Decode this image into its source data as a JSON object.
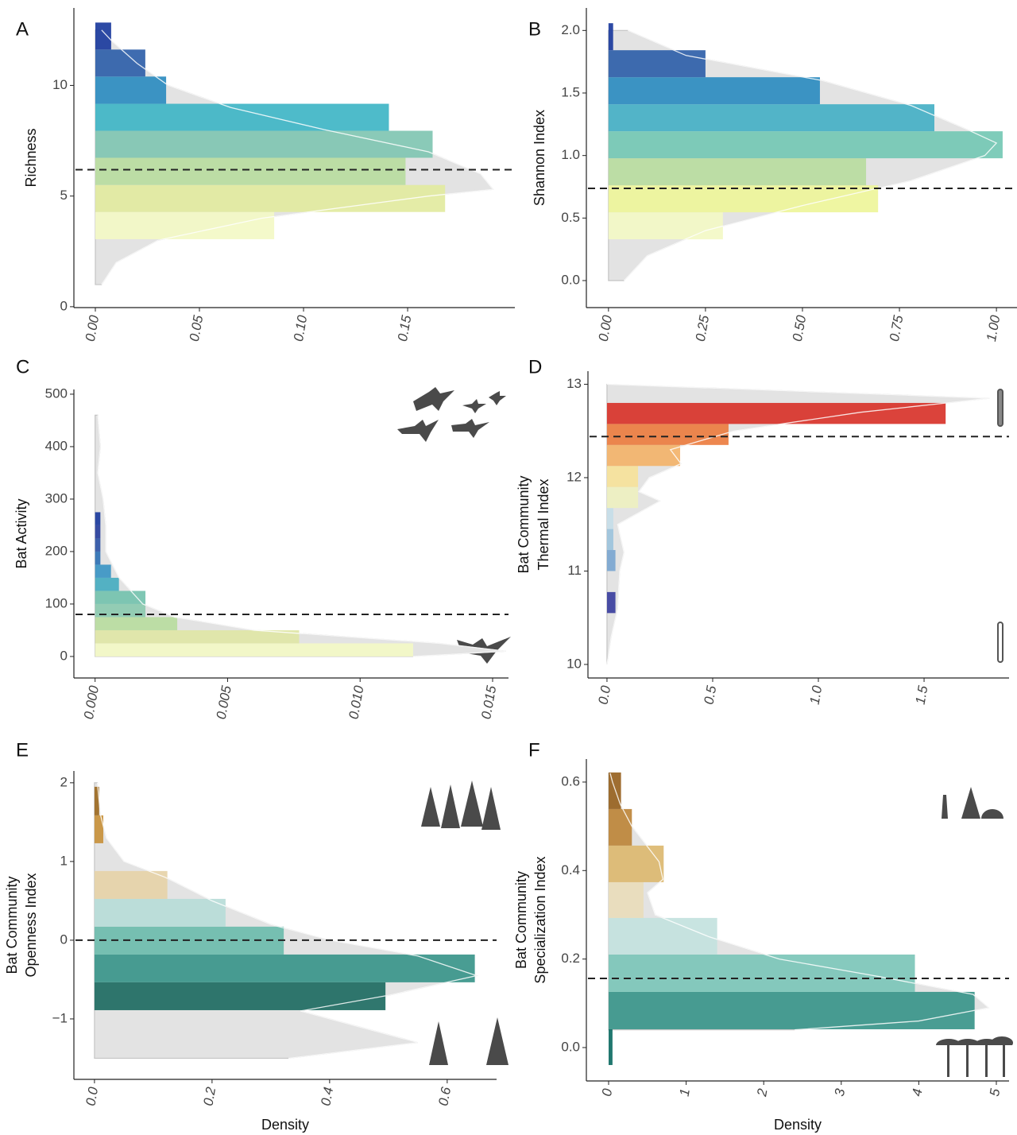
{
  "chart_data": [
    {
      "type": "histogram",
      "orientation": "horizontal",
      "label": "A",
      "y_label": [
        "Richness"
      ],
      "bins": [
        3.05,
        4.28,
        5.5,
        6.73,
        7.95,
        9.17,
        10.4,
        11.62,
        12.84
      ],
      "values": [
        0.0859,
        0.168,
        0.149,
        0.162,
        0.141,
        0.034,
        0.024,
        0.0076
      ],
      "colors": [
        "#f3f8c6",
        "#e2eaa0",
        "#b9dca0",
        "#80c5b2",
        "#3fb5c6",
        "#2d8cc0",
        "#2f60a9",
        "#1b3b9d"
      ],
      "density": {
        "y": [
          1,
          2,
          3,
          4,
          5,
          5.3,
          6,
          7,
          8,
          9,
          10,
          11,
          12,
          12.5
        ],
        "values": [
          0.003,
          0.01,
          0.03,
          0.08,
          0.16,
          0.191,
          0.185,
          0.16,
          0.11,
          0.065,
          0.035,
          0.02,
          0.008,
          0.003
        ],
        "color": "#e3e3e3"
      },
      "reference_line": 6.19,
      "xlim": [
        -0.0103,
        0.2015
      ],
      "ylim": [
        -0.04,
        13.5
      ],
      "xticks": [
        {
          "value": 0,
          "label": "0.00"
        },
        0.05,
        {
          "value": 0.1,
          "label": "0.10"
        },
        0.15
      ],
      "yticks": [
        0,
        5,
        10
      ]
    },
    {
      "type": "histogram",
      "orientation": "horizontal",
      "label": "B",
      "y_label": [
        "Shannon Index"
      ],
      "bins": [
        0.33,
        0.546,
        0.762,
        0.978,
        1.194,
        1.41,
        1.626,
        1.842,
        2.058
      ],
      "values": [
        0.295,
        0.695,
        0.664,
        1.016,
        0.84,
        0.545,
        0.25,
        0.012
      ],
      "colors": [
        "#f3f8c6",
        "#eef59a",
        "#b9dca0",
        "#74c8b4",
        "#45b0c6",
        "#2d8cc0",
        "#2f60a9",
        "#1b3b9d"
      ],
      "density": {
        "y": [
          0.0,
          0.2,
          0.4,
          0.6,
          0.8,
          1.0,
          1.1,
          1.2,
          1.4,
          1.6,
          1.8,
          2.0
        ],
        "values": [
          0.04,
          0.1,
          0.25,
          0.5,
          0.78,
          0.97,
          1.0,
          0.93,
          0.78,
          0.55,
          0.2,
          0.05
        ],
        "color": "#e3e3e3"
      },
      "reference_line": 0.737,
      "xlim": [
        -0.057,
        1.053
      ],
      "ylim": [
        -0.216,
        2.18
      ],
      "xticks": [
        {
          "value": 0,
          "label": "0.00"
        },
        0.25,
        {
          "value": 0.5,
          "label": "0.50"
        },
        0.75,
        {
          "value": 1,
          "label": "1.00"
        }
      ],
      "yticks": [
        {
          "value": 0,
          "label": "0.0"
        },
        0.5,
        {
          "value": 1,
          "label": "1.0"
        },
        1.5,
        {
          "value": 2,
          "label": "2.0"
        }
      ]
    },
    {
      "type": "histogram",
      "orientation": "horizontal",
      "label": "C",
      "y_label": [
        "Bat Activity"
      ],
      "bins": [
        0,
        25,
        50,
        75,
        100,
        125,
        150,
        175,
        200,
        225,
        250,
        275
      ],
      "values": [
        0.012,
        0.0077,
        0.0031,
        0.0019,
        0.0019,
        0.0009,
        0.0006,
        0.0002,
        0.0002,
        0.0002,
        0.0002
      ],
      "colors": [
        "#f3f8c6",
        "#dfe6a6",
        "#b9dca0",
        "#8ccab0",
        "#74c2ae",
        "#47adc0",
        "#3b95c4",
        "#2f72b5",
        "#2f55a6",
        "#283f9c",
        "#1b3b9d"
      ],
      "density": {
        "y": [
          0,
          10,
          25,
          50,
          75,
          100,
          150,
          200,
          250,
          300,
          350,
          400,
          460
        ],
        "values": [
          0.012,
          0.0155,
          0.013,
          0.006,
          0.003,
          0.0018,
          0.0009,
          0.0004,
          0.0004,
          0.0003,
          0.0001,
          0.0002,
          0.0001
        ],
        "color": "#e3e3e3"
      },
      "reference_line": 80.3,
      "xlim": [
        -0.0008,
        0.0156
      ],
      "ylim": [
        -41,
        509
      ],
      "xticks": [
        {
          "value": 0,
          "label": "0.000"
        },
        0.005,
        {
          "value": 0.01,
          "label": "0.010"
        },
        0.015
      ],
      "yticks": [
        0,
        100,
        200,
        300,
        400,
        500
      ]
    },
    {
      "type": "histogram",
      "orientation": "horizontal",
      "label": "D",
      "y_label": [
        "Bat Community",
        "Thermal Index"
      ],
      "bins": [
        10.55,
        10.775,
        11.0,
        11.225,
        11.45,
        11.675,
        11.9,
        12.125,
        12.35,
        12.575,
        12.8
      ],
      "values": [
        0.04,
        0.0,
        0.04,
        0.03,
        0.03,
        0.147,
        0.147,
        0.346,
        0.575,
        1.602
      ],
      "colors": [
        "#3b3f9e",
        "#5b7fc0",
        "#7ba6d0",
        "#9cc3dc",
        "#c5dde8",
        "#eef0c0",
        "#f6e29a",
        "#f3b36a",
        "#ec7d40",
        "#d8332a"
      ],
      "density": {
        "y": [
          10.0,
          10.3,
          10.6,
          11.0,
          11.2,
          11.5,
          11.75,
          11.85,
          12.0,
          12.15,
          12.3,
          12.5,
          12.7,
          12.85,
          13.0
        ],
        "values": [
          0.0,
          0.02,
          0.05,
          0.06,
          0.08,
          0.05,
          0.25,
          0.15,
          0.2,
          0.35,
          0.3,
          0.6,
          1.2,
          1.81,
          0.0
        ],
        "color": "#e3e3e3"
      },
      "reference_line": 12.44,
      "xlim": [
        -0.09,
        1.902
      ],
      "ylim": [
        9.855,
        13.14
      ],
      "xticks": [
        {
          "value": 0,
          "label": "0.0"
        },
        0.5,
        {
          "value": 1,
          "label": "1.0"
        },
        1.5
      ],
      "yticks": [
        10,
        11,
        12,
        13
      ]
    },
    {
      "type": "histogram",
      "orientation": "horizontal",
      "label": "E",
      "y_label": [
        "Bat Community",
        "Openness Index"
      ],
      "x_label": "Density",
      "bins": [
        -0.889,
        -0.535,
        -0.182,
        0.172,
        0.525,
        0.879,
        1.232,
        1.586,
        1.949
      ],
      "values": [
        0.495,
        0.647,
        0.322,
        0.223,
        0.124,
        0.0,
        0.015,
        0.008
      ],
      "colors": [
        "#1e6b62",
        "#3a958a",
        "#6dbcac",
        "#b7dcd8",
        "#e6d3a8",
        "#d6b068",
        "#c8913c",
        "#9c6a22"
      ],
      "density": {
        "y": [
          -1.5,
          -1.3,
          -1.1,
          -0.9,
          -0.7,
          -0.45,
          -0.2,
          0,
          0.2,
          0.5,
          0.8,
          1.0,
          1.3,
          1.6,
          2.0
        ],
        "values": [
          0.33,
          0.55,
          0.45,
          0.35,
          0.5,
          0.65,
          0.55,
          0.4,
          0.3,
          0.2,
          0.12,
          0.05,
          0.02,
          0.01,
          0.005
        ],
        "color": "#e3e3e3"
      },
      "reference_line": 0,
      "xlim": [
        -0.035,
        0.684
      ],
      "ylim": [
        -1.768,
        2.15
      ],
      "xticks": [
        {
          "value": 0,
          "label": "0.0"
        },
        0.2,
        0.4,
        0.6
      ],
      "yticks": [
        {
          "value": -1,
          "label": "−1"
        },
        0,
        1,
        2
      ]
    },
    {
      "type": "histogram",
      "orientation": "horizontal",
      "label": "F",
      "y_label": [
        "Bat Community",
        "Specialization Index"
      ],
      "x_label": "Density",
      "bins": [
        -0.0395,
        0.0413,
        0.1258,
        0.2102,
        0.2929,
        0.3737,
        0.4564,
        0.539,
        0.6217
      ],
      "values": [
        0.05,
        4.72,
        3.95,
        1.4,
        0.45,
        0.71,
        0.3,
        0.16
      ],
      "colors": [
        "#0e6b63",
        "#3a958a",
        "#7cc6b8",
        "#c3e2de",
        "#e9dcbb",
        "#dcb870",
        "#bd853a",
        "#97621f"
      ],
      "density": {
        "y": [
          0.04,
          0.06,
          0.09,
          0.12,
          0.16,
          0.2,
          0.25,
          0.3,
          0.35,
          0.38,
          0.42,
          0.5,
          0.55,
          0.6,
          0.62
        ],
        "values": [
          2.4,
          4.0,
          4.9,
          4.7,
          3.5,
          2.2,
          1.3,
          0.6,
          0.5,
          0.7,
          0.65,
          0.3,
          0.15,
          0.05,
          0.02
        ],
        "color": "#e3e3e3"
      },
      "reference_line": 0.1563,
      "xlim": [
        -0.287,
        5.164
      ],
      "ylim": [
        -0.0755,
        0.652
      ],
      "xticks": [
        0,
        1,
        2,
        3,
        4,
        5
      ],
      "yticks": [
        {
          "value": 0,
          "label": "0.0"
        },
        0.2,
        0.4,
        0.6
      ]
    }
  ]
}
